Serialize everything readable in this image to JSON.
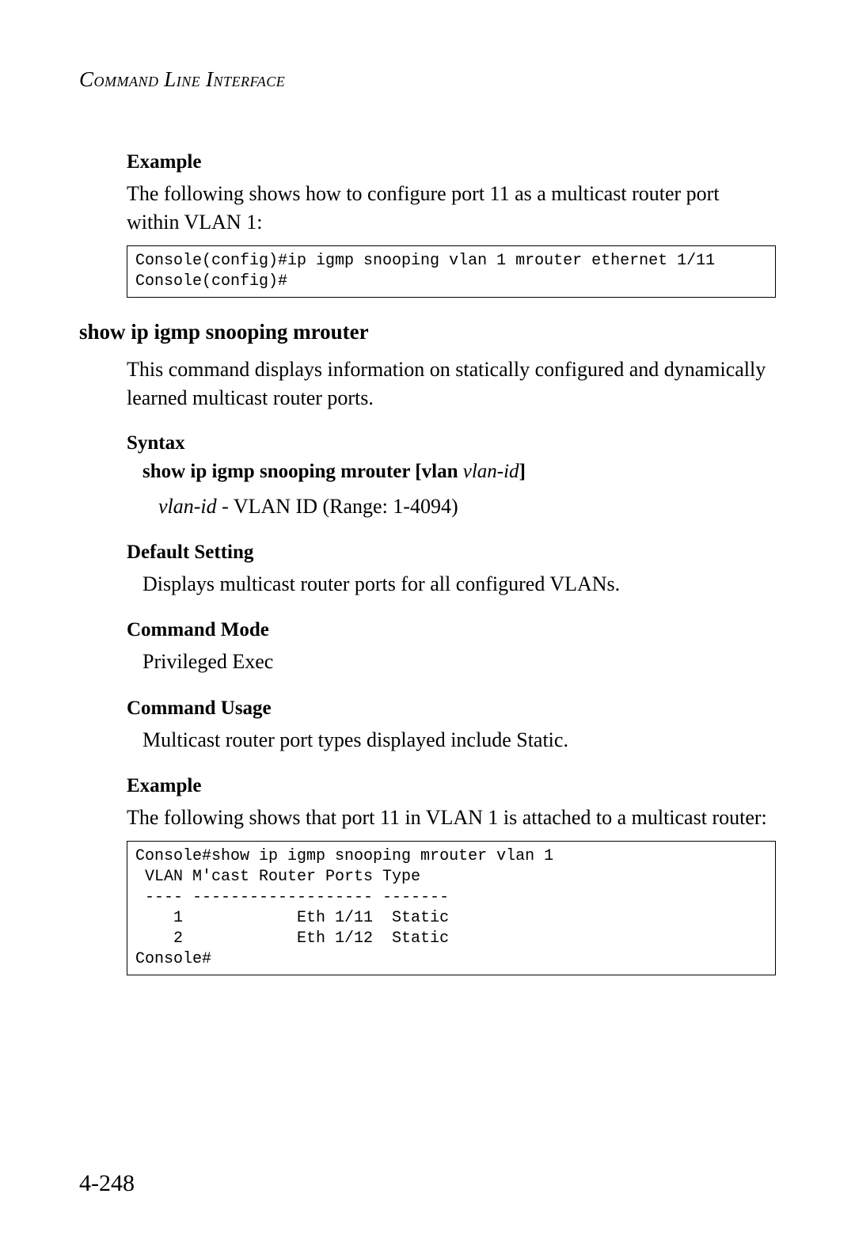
{
  "header": {
    "text": "Command Line Interface"
  },
  "section1": {
    "subhead": "Example",
    "body": "The following shows how to configure port 11 as a multicast router port within VLAN 1:",
    "code": "Console(config)#ip igmp snooping vlan 1 mrouter ethernet 1/11\nConsole(config)#"
  },
  "command": {
    "heading": "show ip igmp snooping mrouter",
    "desc": "This command displays information on statically configured and dynamically learned multicast router ports."
  },
  "syntax": {
    "subhead": "Syntax",
    "line_bold": "show ip igmp snooping mrouter ",
    "line_bracket_open": "[",
    "line_vlan": "vlan ",
    "line_italic": "vlan-id",
    "line_bracket_close": "]",
    "param_italic": "vlan-id",
    "param_rest": " - VLAN ID (Range: 1-4094)"
  },
  "default_setting": {
    "subhead": "Default Setting",
    "body": "Displays multicast router ports for all configured VLANs."
  },
  "command_mode": {
    "subhead": "Command Mode",
    "body": "Privileged Exec"
  },
  "command_usage": {
    "subhead": "Command Usage",
    "body": "Multicast router port types displayed include Static."
  },
  "example2": {
    "subhead": "Example",
    "body": "The following shows that port 11 in VLAN 1 is attached to a multicast router:",
    "code": "Console#show ip igmp snooping mrouter vlan 1\n VLAN M'cast Router Ports Type\n ---- ------------------- -------\n    1            Eth 1/11  Static\n    2            Eth 1/12  Static\nConsole#"
  },
  "page_number": "4-248"
}
